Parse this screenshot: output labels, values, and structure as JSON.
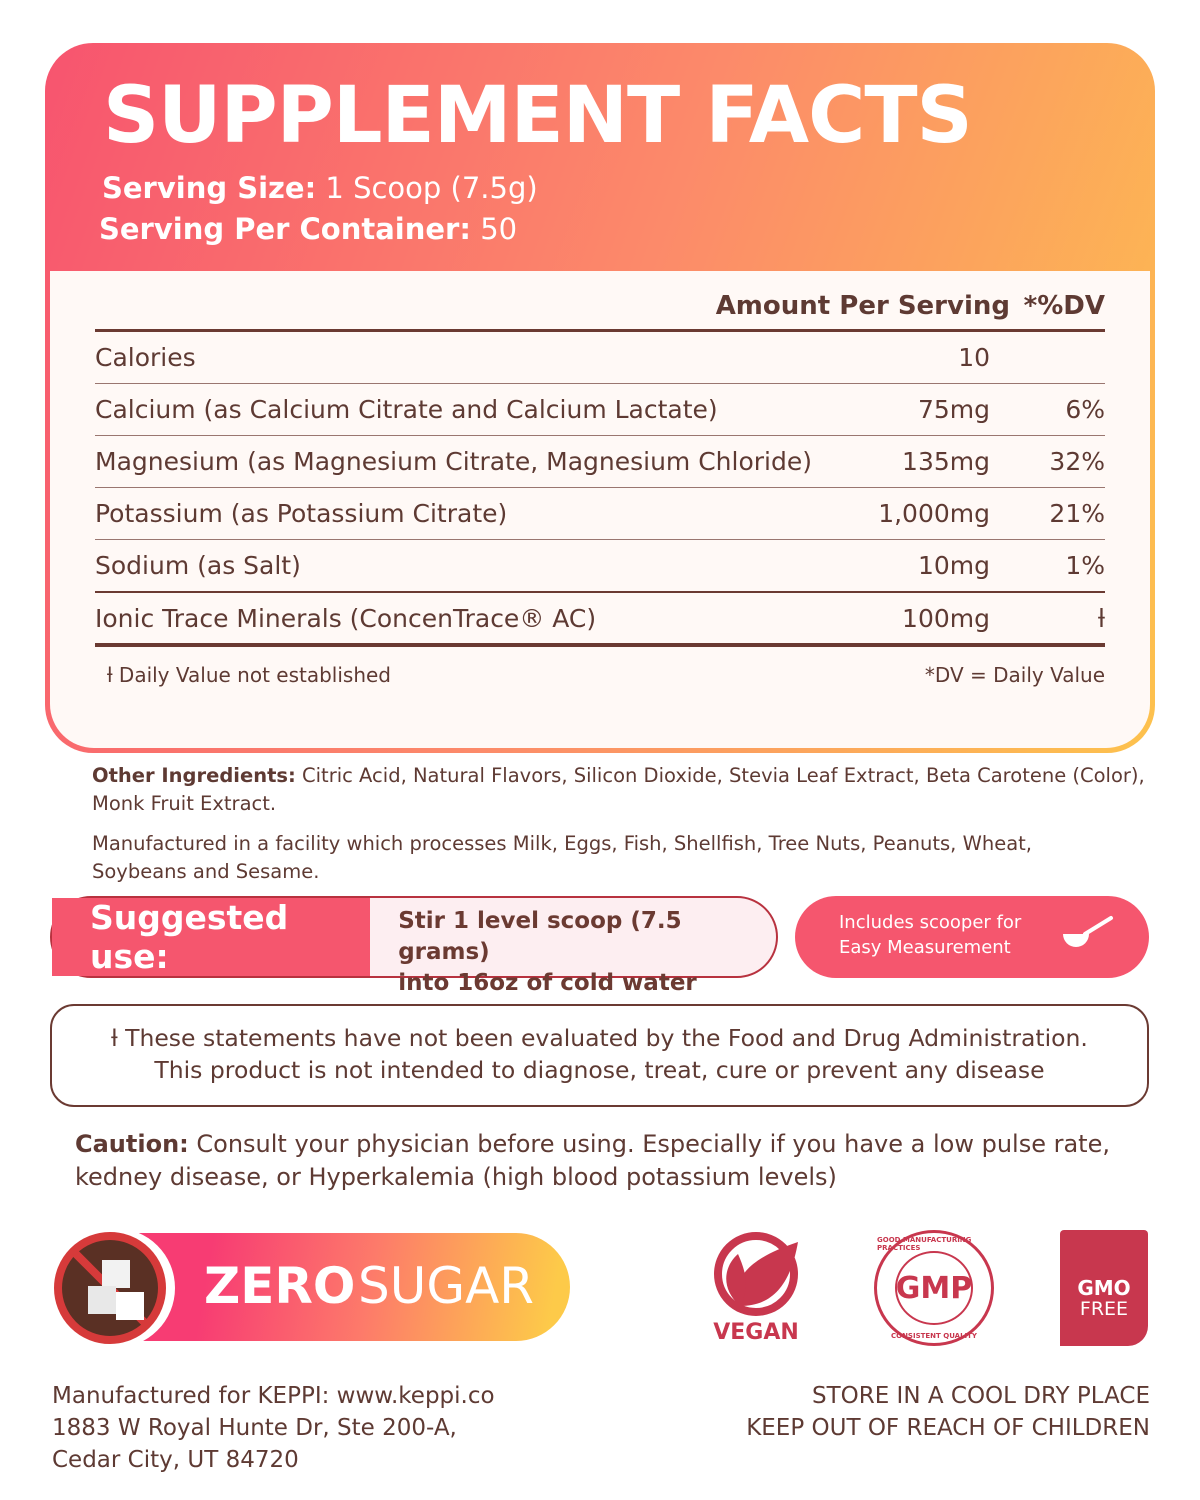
{
  "header": {
    "title": "SUPPLEMENT FACTS",
    "serving_size_label": "Serving Size:",
    "serving_size": "1 Scoop (7.5g)",
    "servings_label": "Serving Per Container:",
    "servings": "50"
  },
  "table": {
    "col_amount": "Amount Per Serving",
    "col_dv": "*%DV",
    "rows": [
      {
        "name": "Calories",
        "amount": "10",
        "dv": ""
      },
      {
        "name": "Calcium (as Calcium Citrate and Calcium Lactate)",
        "amount": "75mg",
        "dv": "6%"
      },
      {
        "name": "Magnesium (as Magnesium Citrate, Magnesium Chloride)",
        "amount": "135mg",
        "dv": "32%"
      },
      {
        "name": "Potassium (as Potassium Citrate)",
        "amount": "1,000mg",
        "dv": "21%"
      },
      {
        "name": "Sodium (as Salt)",
        "amount": "10mg",
        "dv": "1%"
      },
      {
        "name": "Ionic Trace Minerals (ConcenTrace® AC)",
        "amount": "100mg",
        "dv": "ƚ"
      }
    ],
    "foot_left": "ƚ Daily Value not established",
    "foot_right": "*DV = Daily Value"
  },
  "other": {
    "label": "Other Ingredients:",
    "text": " Citric Acid, Natural Flavors, Silicon Dioxide, Stevia Leaf Extract, Beta Carotene (Color), Monk Fruit Extract."
  },
  "facility": "Manufactured in a facility which processes Milk, Eggs, Fish, Shellfish, Tree Nuts, Peanuts, Wheat, Soybeans and Sesame.",
  "suggested": {
    "label": "Suggested use:",
    "line1": "Stir 1 level scoop (7.5 grams)",
    "line2": "into 16oz of cold water"
  },
  "scooper": {
    "line1": "Includes scooper for",
    "line2": "Easy Measurement"
  },
  "disclaimer": {
    "line1": "ƚ These statements have not been evaluated by the Food and Drug Administration.",
    "line2": "This product is not intended to diagnose, treat, cure or prevent any disease"
  },
  "caution": {
    "label": "Caution:",
    "text": "  Consult your physician before using. Especially if you have a low pulse rate, kedney disease, or Hyperkalemia (high blood potassium levels)"
  },
  "zero_sugar": {
    "bold": "ZERO",
    "light": "SUGAR"
  },
  "badges": {
    "vegan": "VEGAN",
    "gmp": "GMP",
    "gmp_top": "GOOD MANUFACTURING PRACTICES",
    "gmp_bottom": "CONSISTENT QUALITY",
    "gmo1": "GMO",
    "gmo2": "FREE"
  },
  "manufacturer": {
    "line1": "Manufactured for KEPPI: www.keppi.co",
    "line2": "1883 W Royal Hunte Dr, Ste 200-A,",
    "line3": "Cedar City, UT 84720"
  },
  "storage": {
    "line1": "STORE IN A COOL DRY PLACE",
    "line2": "KEEP OUT OF REACH OF CHILDREN"
  },
  "colors": {
    "accent": "#f5566e",
    "text": "#5e3a33",
    "badge": "#c8374e"
  }
}
